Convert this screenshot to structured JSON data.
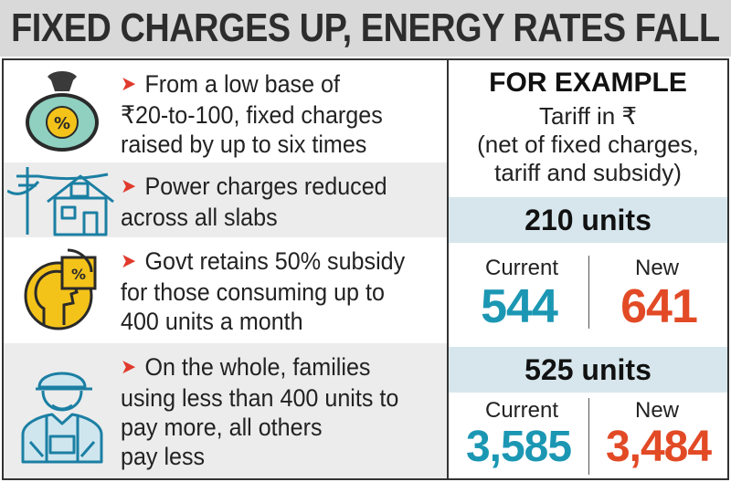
{
  "title": "FIXED CHARGES UP, ENERGY RATES FALL",
  "points": [
    {
      "icon": "money-bag-percent-icon",
      "lines": [
        "From a low base of",
        "₹20-to-100, fixed charges",
        "raised by up to six times"
      ]
    },
    {
      "icon": "house-power-pole-icon",
      "lines": [
        "Power charges reduced",
        "across all slabs"
      ]
    },
    {
      "icon": "head-percent-chart-icon",
      "lines": [
        "Govt retains 50% subsidy",
        "for those consuming up to",
        "400 units a month"
      ]
    },
    {
      "icon": "worker-icon",
      "lines": [
        "On the whole, families",
        "using less than 400 units to",
        "pay more, all others",
        "pay less"
      ]
    }
  ],
  "example": {
    "heading": "FOR EXAMPLE",
    "sub": [
      "Tariff in ₹",
      "(net of fixed charges,",
      "tariff and subsidy)"
    ],
    "cases": [
      {
        "units": "210 units",
        "current_label": "Current",
        "new_label": "New",
        "current": "544",
        "new": "641"
      },
      {
        "units": "525 units",
        "current_label": "Current",
        "new_label": "New",
        "current": "3,585",
        "new": "3,484"
      }
    ]
  },
  "colors": {
    "arrow": "#e03a2c",
    "current": "#1b97b3",
    "new": "#e24a26",
    "band": "#d6e6ec",
    "icon_fill": "#f4c31a",
    "icon_line": "#1b7fa3"
  }
}
